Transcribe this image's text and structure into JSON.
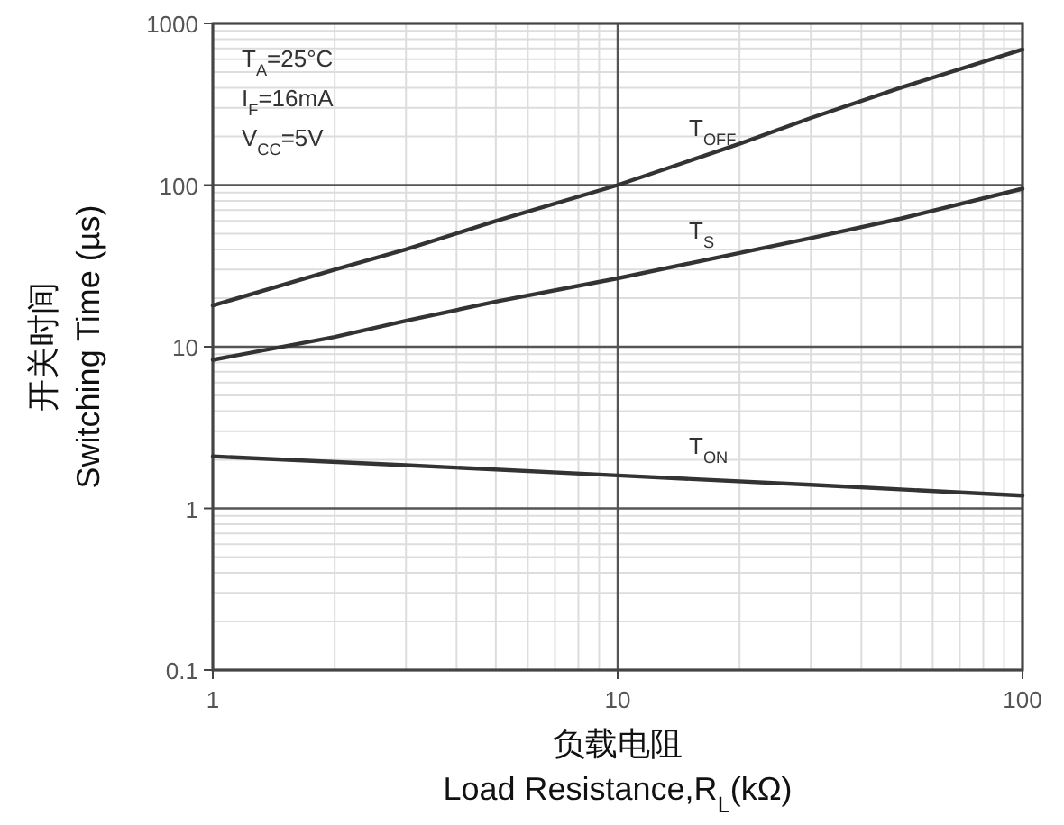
{
  "chart_data": {
    "type": "line",
    "xlabel": "负载电阻\nLoad Resistance,R$_{L}$(kΩ)",
    "ylabel": "开关时间\nSwitching Time (µs)",
    "log": "xy",
    "grid": true,
    "marker": "none",
    "line_style": "solid",
    "xlim": [
      1,
      100
    ],
    "ylim": [
      0.1,
      1000
    ],
    "xticks": [
      1,
      10,
      100
    ],
    "yticks": [
      0.1,
      1,
      10,
      100,
      1000
    ],
    "annotations": [
      "T$_{A}$=25°C",
      "I$_{F}$=16mA",
      "V$_{CC}$=5V"
    ],
    "series": [
      {
        "name": "T$_{OFF}$",
        "color": "#333333",
        "x": [
          1,
          2,
          3,
          5,
          10,
          20,
          30,
          50,
          100
        ],
        "values": [
          18,
          30,
          40,
          60,
          100,
          180,
          260,
          400,
          690
        ]
      },
      {
        "name": "T$_{S}$",
        "color": "#333333",
        "x": [
          1,
          2,
          3,
          5,
          10,
          20,
          30,
          50,
          100
        ],
        "values": [
          8.3,
          11.5,
          14.5,
          19,
          26.5,
          38,
          47,
          62,
          95
        ]
      },
      {
        "name": "T$_{ON}$",
        "color": "#333333",
        "x": [
          1,
          3,
          10,
          30,
          100
        ],
        "values": [
          2.1,
          1.85,
          1.6,
          1.4,
          1.2
        ]
      }
    ]
  }
}
